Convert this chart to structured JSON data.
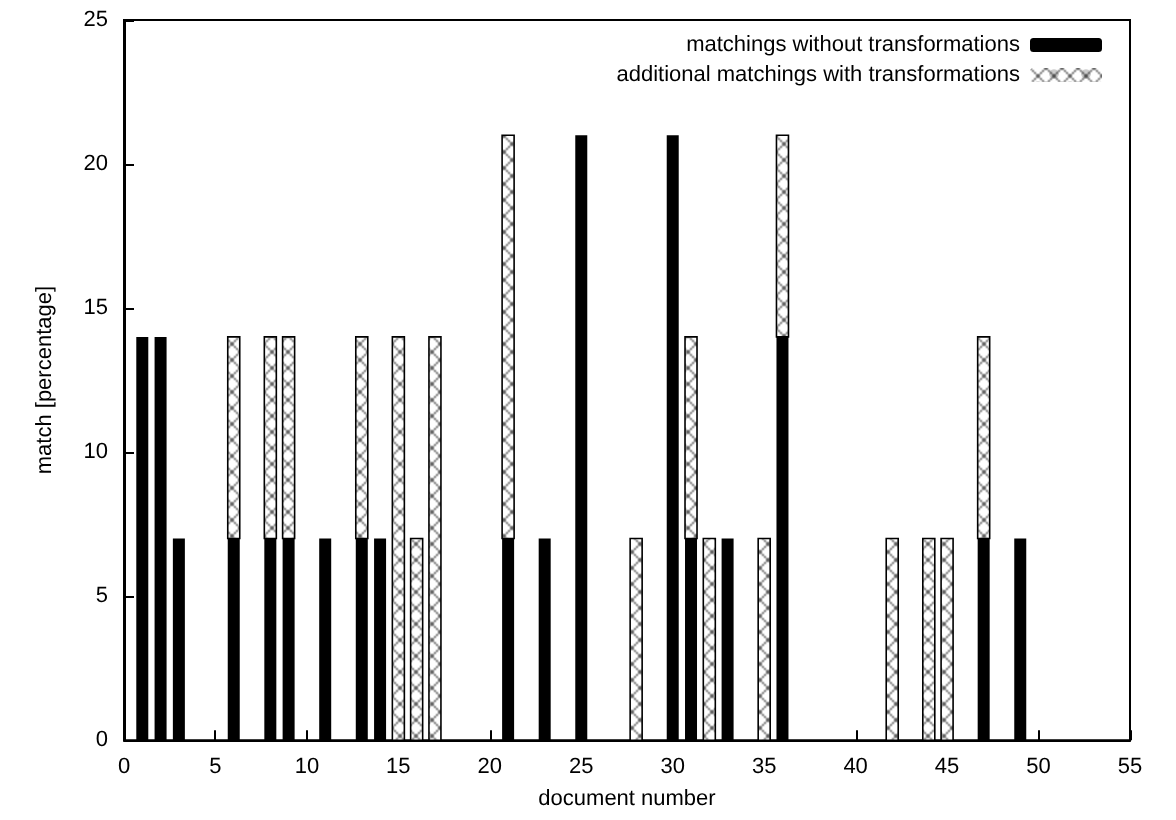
{
  "chart_data": {
    "type": "bar",
    "stacked": true,
    "xlabel": "document number",
    "ylabel": "match [percentage]",
    "x": [
      1,
      2,
      3,
      6,
      8,
      9,
      11,
      13,
      14,
      15,
      16,
      17,
      21,
      23,
      25,
      28,
      30,
      31,
      32,
      33,
      35,
      36,
      42,
      44,
      45,
      47,
      49
    ],
    "series": [
      {
        "name": "matchings without transformations",
        "color": "#000000",
        "values": [
          14,
          14,
          7,
          7,
          7,
          7,
          7,
          7,
          7,
          null,
          null,
          null,
          7,
          7,
          21,
          null,
          21,
          7,
          null,
          7,
          null,
          14,
          null,
          null,
          null,
          7,
          7
        ]
      },
      {
        "name": "additional matchings with transformations",
        "color": "#000000",
        "values": [
          null,
          null,
          null,
          7,
          7,
          7,
          null,
          7,
          null,
          14,
          7,
          14,
          14,
          null,
          null,
          7,
          null,
          7,
          7,
          null,
          7,
          7,
          7,
          7,
          7,
          7,
          null
        ]
      }
    ],
    "xlim": [
      0,
      55
    ],
    "xticks": [
      0,
      5,
      10,
      15,
      20,
      25,
      30,
      35,
      40,
      45,
      50,
      55
    ],
    "ylim": [
      0,
      25
    ],
    "yticks": [
      0,
      5,
      10,
      15,
      20,
      25
    ],
    "grid": false,
    "legend": "top right"
  }
}
